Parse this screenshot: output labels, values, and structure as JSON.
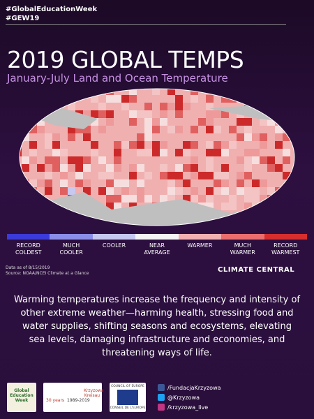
{
  "header": {
    "hashtags": [
      "#GlobalEducationWeek",
      "#GEW19"
    ]
  },
  "title": "2019 GLOBAL TEMPS",
  "subtitle": "January-July Land and Ocean Temperature",
  "legend": [
    "RECORD COLDEST",
    "MUCH COOLER",
    "COOLER",
    "NEAR AVERAGE",
    "WARMER",
    "MUCH WARMER",
    "RECORD WARMEST"
  ],
  "notes": [
    "Data as of 8/15/2019",
    "Source: NOAA/NCEI Climate at a Glance"
  ],
  "brand": "CLIMATE CENTRAL",
  "body": "Warming temperatures increase the frequency and intensity of other extreme weather—harming health, stressing food and water supplies, shifting seasons and ecosystems, elevating sea levels, damaging infrastructure and economies, and threatening ways of life.",
  "logos": {
    "gew": "Global Education Week",
    "anniversary": "30 years",
    "anniversary_years": "1989-2019",
    "krzyzowa": "Krzyzowa Kreisau",
    "coe_en": "COUNCIL OF EUROPE",
    "coe_fr": "CONSEIL DE L'EUROPE"
  },
  "social": [
    "/FundacjaKrzyzowa",
    "@Krzyzowa",
    "/krzyzowa_live"
  ]
}
